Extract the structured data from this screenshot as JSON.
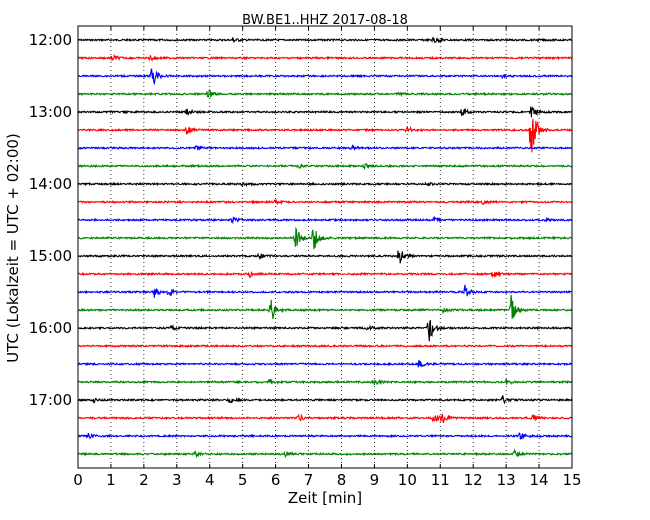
{
  "chart_data": {
    "type": "line",
    "title": "BW.BE1..HHZ 2017-08-18",
    "xlabel": "Zeit  [min]",
    "ylabel": "UTC (Lokalzeit = UTC + 02:00)",
    "xlim": [
      0,
      15
    ],
    "x_ticks": [
      "0",
      "1",
      "2",
      "3",
      "4",
      "5",
      "6",
      "7",
      "8",
      "9",
      "10",
      "11",
      "12",
      "13",
      "14",
      "15"
    ],
    "y_tick_labels": [
      "12:00",
      "13:00",
      "14:00",
      "15:00",
      "16:00",
      "17:00"
    ],
    "grid": "vertical dotted",
    "trace_colors": [
      "#000000",
      "#ff0000",
      "#0000ff",
      "#008000"
    ],
    "series": [
      {
        "start": "12:00",
        "events": [
          {
            "t": 4.7,
            "amp": 0.3
          },
          {
            "t": 10.8,
            "amp": 0.45
          }
        ]
      },
      {
        "start": "12:15",
        "events": [
          {
            "t": 1.05,
            "amp": 0.35
          },
          {
            "t": 2.2,
            "amp": 0.3
          }
        ]
      },
      {
        "start": "12:30",
        "events": [
          {
            "t": 2.25,
            "amp": 1.4
          },
          {
            "t": 12.9,
            "amp": 0.2
          }
        ]
      },
      {
        "start": "12:45",
        "events": [
          {
            "t": 3.95,
            "amp": 0.5
          },
          {
            "t": 9.7,
            "amp": 0.2
          }
        ]
      },
      {
        "start": "13:00",
        "events": [
          {
            "t": 3.3,
            "amp": 0.35
          },
          {
            "t": 11.65,
            "amp": 0.45
          },
          {
            "t": 13.75,
            "amp": 1.0
          }
        ]
      },
      {
        "start": "13:15",
        "events": [
          {
            "t": 3.3,
            "amp": 0.45
          },
          {
            "t": 10.0,
            "amp": 0.4
          },
          {
            "t": 13.75,
            "amp": 4.0
          }
        ]
      },
      {
        "start": "13:30",
        "events": [
          {
            "t": 3.6,
            "amp": 0.3
          },
          {
            "t": 8.3,
            "amp": 0.2
          }
        ]
      },
      {
        "start": "13:45",
        "events": [
          {
            "t": 6.7,
            "amp": 0.2
          },
          {
            "t": 8.7,
            "amp": 0.25
          }
        ]
      },
      {
        "start": "14:00",
        "events": [
          {
            "t": 5.0,
            "amp": 0.2
          },
          {
            "t": 10.6,
            "amp": 0.2
          }
        ]
      },
      {
        "start": "14:15",
        "events": [
          {
            "t": 6.0,
            "amp": 0.25
          },
          {
            "t": 12.3,
            "amp": 0.2
          }
        ]
      },
      {
        "start": "14:30",
        "events": [
          {
            "t": 4.7,
            "amp": 0.3
          },
          {
            "t": 10.8,
            "amp": 0.3
          },
          {
            "t": 14.2,
            "amp": 0.25
          }
        ]
      },
      {
        "start": "14:45",
        "events": [
          {
            "t": 6.6,
            "amp": 1.3
          },
          {
            "t": 7.15,
            "amp": 1.6
          }
        ]
      },
      {
        "start": "15:00",
        "events": [
          {
            "t": 5.5,
            "amp": 0.35
          },
          {
            "t": 9.75,
            "amp": 1.2
          }
        ]
      },
      {
        "start": "15:15",
        "events": [
          {
            "t": 5.2,
            "amp": 0.5
          },
          {
            "t": 12.6,
            "amp": 0.4
          }
        ]
      },
      {
        "start": "15:30",
        "events": [
          {
            "t": 2.3,
            "amp": 0.7
          },
          {
            "t": 2.75,
            "amp": 0.5
          },
          {
            "t": 11.75,
            "amp": 0.8
          }
        ]
      },
      {
        "start": "15:45",
        "events": [
          {
            "t": 5.85,
            "amp": 1.6
          },
          {
            "t": 13.15,
            "amp": 1.7
          },
          {
            "t": 11.1,
            "amp": 0.3
          }
        ]
      },
      {
        "start": "16:00",
        "events": [
          {
            "t": 10.65,
            "amp": 1.7
          },
          {
            "t": 2.8,
            "amp": 0.3
          },
          {
            "t": 8.8,
            "amp": 0.3
          }
        ]
      },
      {
        "start": "16:15",
        "events": []
      },
      {
        "start": "16:30",
        "events": [
          {
            "t": 10.35,
            "amp": 0.4
          }
        ]
      },
      {
        "start": "16:45",
        "events": [
          {
            "t": 5.8,
            "amp": 0.4
          },
          {
            "t": 9.0,
            "amp": 0.3
          },
          {
            "t": 13.0,
            "amp": 0.3
          }
        ]
      },
      {
        "start": "17:00",
        "events": [
          {
            "t": 0.45,
            "amp": 0.3
          },
          {
            "t": 4.6,
            "amp": 0.3
          },
          {
            "t": 12.9,
            "amp": 0.45
          }
        ]
      },
      {
        "start": "17:15",
        "events": [
          {
            "t": 6.7,
            "amp": 0.45
          },
          {
            "t": 10.8,
            "amp": 0.6
          },
          {
            "t": 11.05,
            "amp": 0.6
          },
          {
            "t": 13.8,
            "amp": 0.4
          }
        ]
      },
      {
        "start": "17:30",
        "events": [
          {
            "t": 0.3,
            "amp": 0.3
          },
          {
            "t": 13.4,
            "amp": 0.45
          }
        ]
      },
      {
        "start": "17:45",
        "events": [
          {
            "t": 3.55,
            "amp": 0.3
          },
          {
            "t": 6.3,
            "amp": 0.3
          },
          {
            "t": 13.25,
            "amp": 0.35
          }
        ]
      }
    ]
  }
}
